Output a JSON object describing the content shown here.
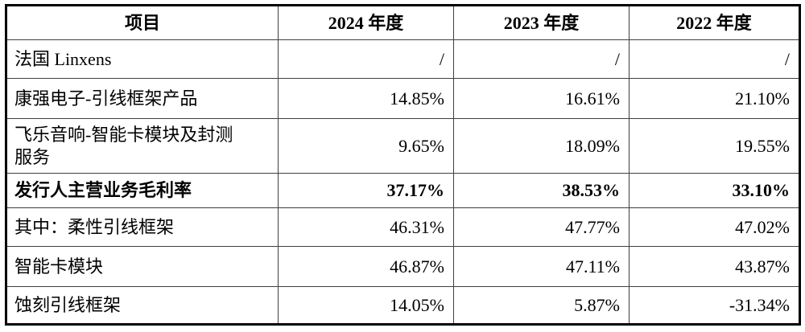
{
  "table": {
    "columns": {
      "item": "项目",
      "y2024": "2024 年度",
      "y2023": "2023 年度",
      "y2022": "2022 年度"
    },
    "rows": [
      {
        "label": "法国 Linxens",
        "values": [
          "/",
          "/",
          "/"
        ]
      },
      {
        "label": "康强电子-引线框架产品",
        "values": [
          "14.85%",
          "16.61%",
          "21.10%"
        ]
      },
      {
        "label": "飞乐音响-智能卡模块及封测\n服务",
        "values": [
          "9.65%",
          "18.09%",
          "19.55%"
        ]
      },
      {
        "label": "发行人主营业务毛利率",
        "values": [
          "37.17%",
          "38.53%",
          "33.10%"
        ]
      },
      {
        "label": "其中：柔性引线框架",
        "values": [
          "46.31%",
          "47.77%",
          "47.02%"
        ]
      },
      {
        "label": "智能卡模块",
        "values": [
          "46.87%",
          "47.11%",
          "43.87%"
        ]
      },
      {
        "label": "蚀刻引线框架",
        "values": [
          "14.05%",
          "5.87%",
          "-31.34%"
        ]
      }
    ],
    "colors": {
      "border_outer": "#000000",
      "border_inner": "#3f3f3f",
      "text": "#000000",
      "background": "#ffffff"
    }
  }
}
